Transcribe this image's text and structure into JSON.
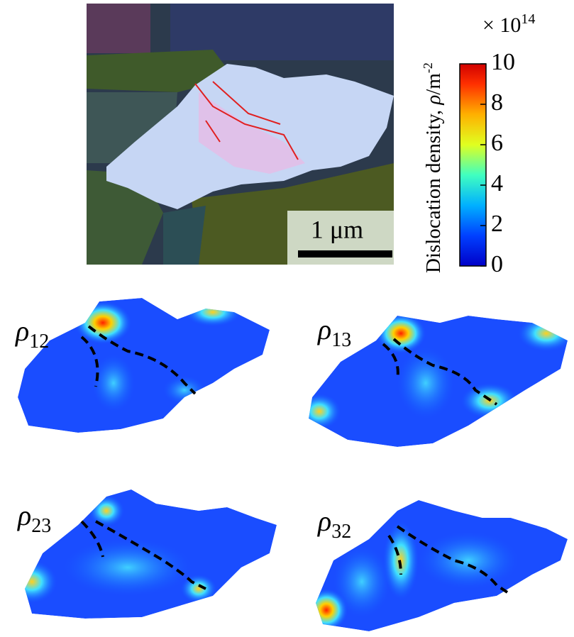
{
  "colorbar": {
    "multiplier": {
      "base": "× 10",
      "exponent": "14"
    },
    "label": {
      "text": "Dislocation density, ",
      "symbol": "ρ",
      "unit": "/m",
      "exponent": "-2"
    },
    "lim": [
      0,
      10
    ],
    "ticks": [
      0,
      2,
      4,
      6,
      8,
      10
    ]
  },
  "scale_bar": "1 μm",
  "panels": [
    {
      "symbol": "ρ",
      "subscript": "12"
    },
    {
      "symbol": "ρ",
      "subscript": "13"
    },
    {
      "symbol": "ρ",
      "subscript": "23"
    },
    {
      "symbol": "ρ",
      "subscript": "32"
    }
  ]
}
